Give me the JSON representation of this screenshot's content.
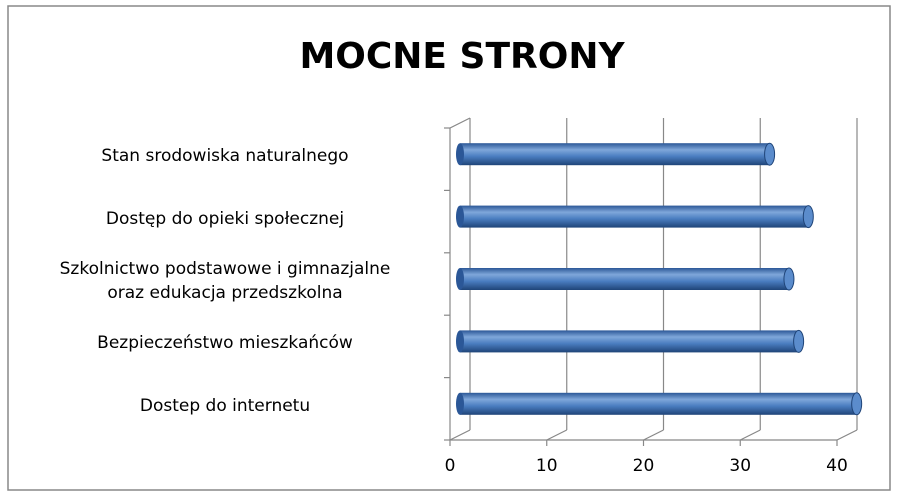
{
  "chart_data": {
    "type": "bar",
    "orientation": "horizontal",
    "title": "MOCNE  STRONY",
    "categories": [
      "Stan srodowiska naturalnego",
      "Dostęp do opieki społecznej",
      "Szkolnictwo podstawowe i gimnazjalne\noraz edukacja przedszkolna",
      "Bezpieczeństwo mieszkańców",
      "Dostep do internetu"
    ],
    "values": [
      32,
      36,
      34,
      35,
      41
    ],
    "color": "#4f81bd",
    "xlim": [
      0,
      40
    ],
    "xticks": [
      0,
      10,
      20,
      30,
      40
    ],
    "grid": true
  }
}
